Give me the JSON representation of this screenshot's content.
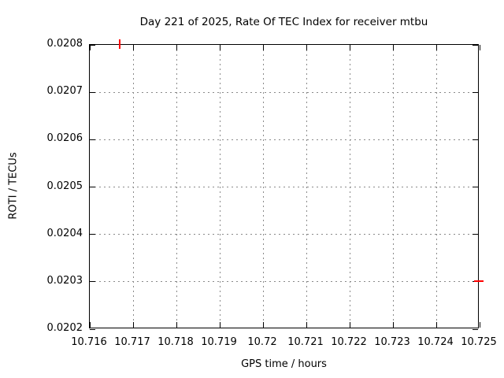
{
  "chart_data": {
    "type": "scatter",
    "title": "Day 221 of 2025, Rate Of TEC Index for receiver mtbu",
    "xlabel": "GPS time / hours",
    "ylabel": "ROTI / TECUs",
    "xlim": [
      10.716,
      10.725
    ],
    "ylim": [
      0.0202,
      0.0208
    ],
    "x_ticks": [
      10.716,
      10.717,
      10.718,
      10.719,
      10.72,
      10.721,
      10.722,
      10.723,
      10.724,
      10.725
    ],
    "x_tick_labels": [
      "10.716",
      "10.717",
      "10.718",
      "10.719",
      "10.72",
      "10.721",
      "10.722",
      "10.723",
      "10.724",
      "10.725"
    ],
    "y_ticks": [
      0.0202,
      0.0203,
      0.0204,
      0.0205,
      0.0206,
      0.0207,
      0.0208
    ],
    "y_tick_labels": [
      "0.0202",
      "0.0203",
      "0.0204",
      "0.0205",
      "0.0206",
      "0.0207",
      "0.0208"
    ],
    "grid": true,
    "grid_style": "dashed",
    "legend": false,
    "series": [
      {
        "name": "ROTI",
        "marker": "+",
        "color": "#ff0000",
        "points": [
          [
            10.7167,
            0.0208
          ],
          [
            10.725,
            0.0203
          ]
        ]
      }
    ]
  },
  "colors": {
    "background": "#ffffff",
    "text": "#000000",
    "border": "#000000",
    "grid": "#8a8a8a",
    "marker": "#ff0000"
  }
}
